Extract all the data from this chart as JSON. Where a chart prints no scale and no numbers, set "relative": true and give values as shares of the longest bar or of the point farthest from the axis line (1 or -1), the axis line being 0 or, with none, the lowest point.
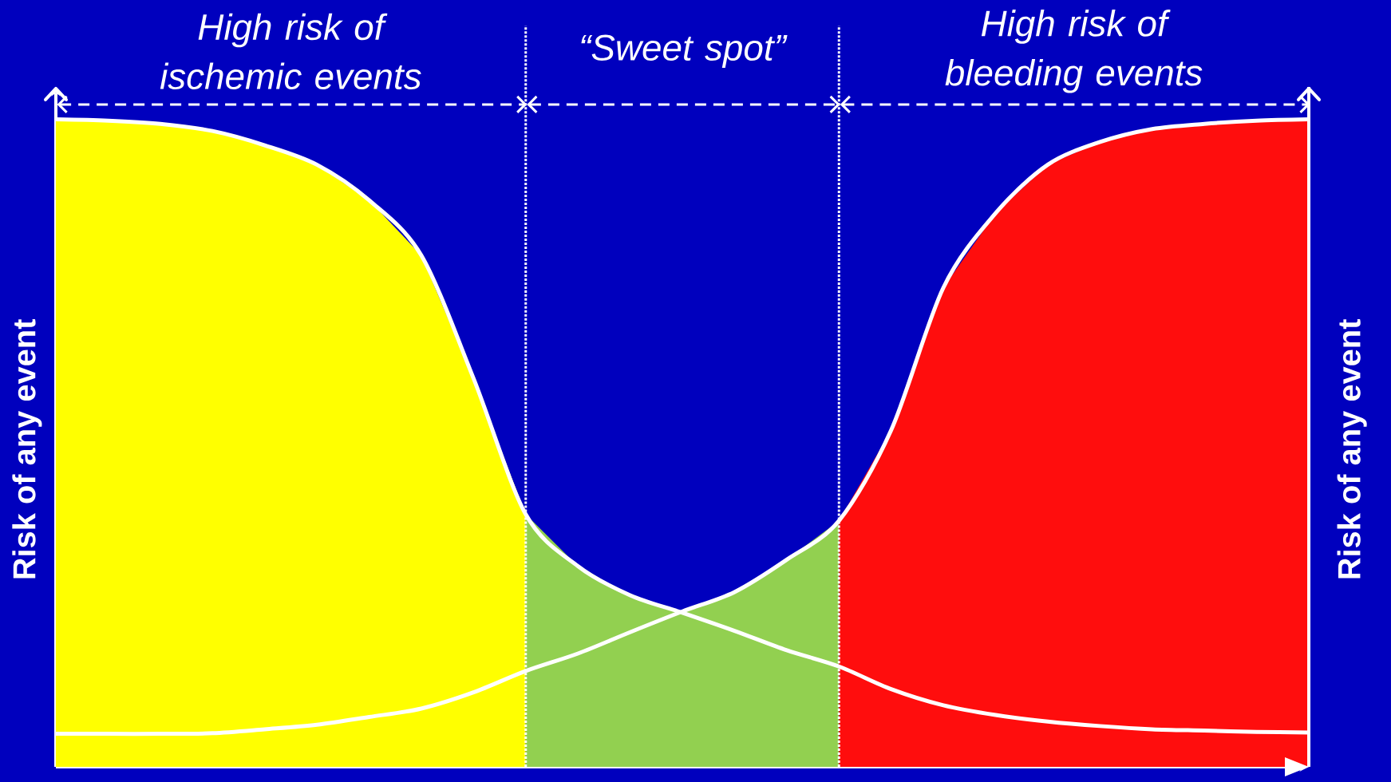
{
  "chart_data": {
    "type": "line",
    "relative": true,
    "ylabel": "Risk of any event",
    "y2label": "Risk of any event",
    "annotations": [
      "High risk of ischemic events",
      "“Sweet spot”",
      "High risk of bleeding events"
    ],
    "categories": [
      null,
      null,
      null,
      null,
      null,
      null,
      null,
      null,
      null,
      null,
      null,
      null,
      null,
      null,
      null,
      null,
      null,
      null,
      null,
      null,
      null,
      null,
      null,
      null,
      null
    ],
    "series": [
      {
        "type": "area",
        "color": "#ffff00",
        "values": [
          1.0,
          0.998,
          0.993,
          0.982,
          0.96,
          0.93,
          0.875,
          0.79,
          0.6,
          0.39,
          null,
          null,
          null,
          null,
          null,
          null,
          null,
          null,
          null,
          null,
          null,
          null,
          null,
          null,
          null
        ]
      },
      {
        "type": "area",
        "color": "#92d050",
        "values": [
          null,
          null,
          null,
          null,
          null,
          null,
          null,
          null,
          null,
          0.39,
          0.31,
          0.265,
          0.24,
          0.27,
          0.32,
          0.38,
          null,
          null,
          null,
          null,
          null,
          null,
          null,
          null,
          null
        ]
      },
      {
        "type": "area",
        "color": "#ff0d0d",
        "values": [
          null,
          null,
          null,
          null,
          null,
          null,
          null,
          null,
          null,
          null,
          null,
          null,
          null,
          null,
          null,
          0.38,
          0.52,
          0.74,
          0.855,
          0.93,
          0.965,
          0.985,
          0.993,
          0.998,
          1.0
        ]
      },
      {
        "color": "#ffffff",
        "values": [
          1.0,
          0.998,
          0.993,
          0.982,
          0.96,
          0.93,
          0.875,
          0.79,
          0.6,
          0.39,
          0.31,
          0.265,
          0.238,
          0.21,
          0.18,
          0.155,
          0.12,
          0.095,
          0.08,
          0.07,
          0.063,
          0.058,
          0.056,
          0.054,
          0.053
        ]
      },
      {
        "color": "#ffffff",
        "values": [
          0.051,
          0.051,
          0.051,
          0.052,
          0.058,
          0.065,
          0.077,
          0.09,
          0.115,
          0.148,
          0.175,
          0.208,
          0.24,
          0.27,
          0.32,
          0.38,
          0.52,
          0.74,
          0.855,
          0.93,
          0.965,
          0.985,
          0.993,
          0.998,
          1.0
        ]
      }
    ]
  }
}
